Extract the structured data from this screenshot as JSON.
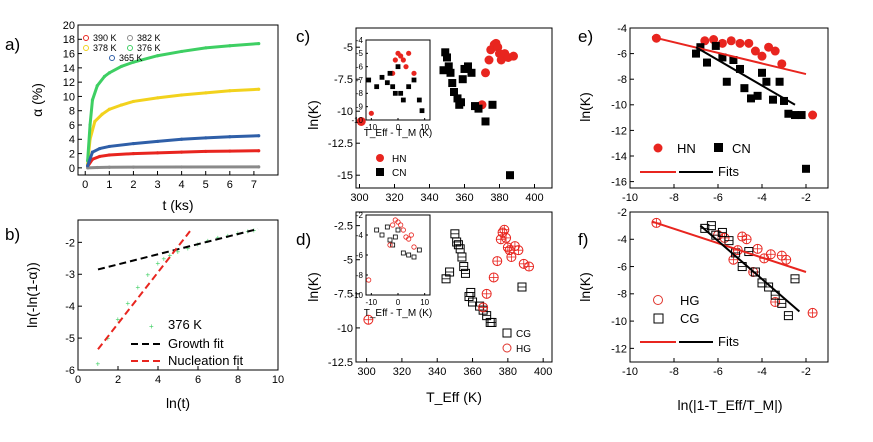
{
  "colors": {
    "red": "#e8251f",
    "green": "#3ecf63",
    "yellow": "#f2d21d",
    "blue": "#2f5fa8",
    "gray": "#8a8a8a",
    "black": "#000000",
    "hollowRed": "#e0342c"
  },
  "panels": {
    "a": {
      "label": "a)",
      "xlabel": "t (ks)",
      "ylabel": "α (%)",
      "legend": [
        "390 K",
        "382 K",
        "378 K",
        "376 K",
        "365 K"
      ]
    },
    "b": {
      "label": "b)",
      "xlabel": "ln(t)",
      "ylabel": "ln(-ln(1-α))",
      "legend": [
        "376 K",
        "Growth fit",
        "Nucleation fit"
      ]
    },
    "c": {
      "label": "c)",
      "ylabel": "ln(K)",
      "legend": [
        "HN",
        "CN"
      ],
      "inset_xlabel": "T_Eff - T_M (K)"
    },
    "d": {
      "label": "d)",
      "xlabel": "T_Eff (K)",
      "ylabel": "ln(K)",
      "legend": [
        "CG",
        "HG"
      ],
      "inset_xlabel": "T_Eff - T_M (K)"
    },
    "e": {
      "label": "e)",
      "ylabel": "ln(K)",
      "legend": [
        "HN",
        "CN",
        "Fits"
      ]
    },
    "f": {
      "label": "f)",
      "xlabel": "ln(|1-T_Eff/T_M|)",
      "ylabel": "ln(K)",
      "legend": [
        "HG",
        "CG",
        "Fits"
      ]
    }
  },
  "chart_data": [
    {
      "id": "a",
      "type": "line",
      "title": "",
      "xlabel": "t (ks)",
      "ylabel": "α (%)",
      "xlim": [
        -0.3,
        8
      ],
      "ylim": [
        -1,
        20
      ],
      "xticks": [
        0,
        1,
        2,
        3,
        4,
        5,
        6,
        7
      ],
      "yticks": [
        0,
        2,
        4,
        6,
        8,
        10,
        12,
        14,
        16,
        18,
        20
      ],
      "series": [
        {
          "name": "390 K",
          "color": "red",
          "x": [
            0.1,
            0.3,
            0.6,
            1,
            2,
            3,
            4,
            5,
            6,
            7.2
          ],
          "y": [
            0.2,
            1.2,
            1.6,
            1.8,
            2.0,
            2.1,
            2.2,
            2.3,
            2.35,
            2.4
          ]
        },
        {
          "name": "382 K",
          "color": "gray",
          "x": [
            0.1,
            0.5,
            1,
            2,
            4,
            7.2
          ],
          "y": [
            0.0,
            0.05,
            0.08,
            0.1,
            0.12,
            0.14
          ]
        },
        {
          "name": "378 K",
          "color": "yellow",
          "x": [
            0.1,
            0.2,
            0.4,
            0.7,
            1,
            1.5,
            2,
            3,
            4,
            5,
            6,
            7.2
          ],
          "y": [
            0.5,
            4,
            6.5,
            7.5,
            8.2,
            8.8,
            9.3,
            9.8,
            10.2,
            10.5,
            10.8,
            11.0
          ]
        },
        {
          "name": "376 K",
          "color": "green",
          "x": [
            0.1,
            0.2,
            0.3,
            0.5,
            0.8,
            1,
            1.5,
            2,
            3,
            4,
            5,
            6,
            7.2
          ],
          "y": [
            1,
            6,
            9.5,
            11.5,
            12.8,
            13.3,
            14.2,
            14.8,
            15.7,
            16.3,
            16.8,
            17.1,
            17.4
          ]
        },
        {
          "name": "365 K",
          "color": "blue",
          "x": [
            0.1,
            0.3,
            0.6,
            1,
            2,
            3,
            4,
            5,
            6,
            7.2
          ],
          "y": [
            0.3,
            2.2,
            2.7,
            3.0,
            3.4,
            3.7,
            4.0,
            4.2,
            4.35,
            4.5
          ]
        }
      ]
    },
    {
      "id": "b",
      "type": "line",
      "xlabel": "ln(t)",
      "ylabel": "ln(-ln(1-α))",
      "xlim": [
        0,
        10
      ],
      "ylim": [
        -6,
        -1.3
      ],
      "xticks": [
        0,
        2,
        4,
        6,
        8,
        10
      ],
      "yticks": [
        -6,
        -5,
        -4,
        -3,
        -2
      ],
      "series": [
        {
          "name": "376 K",
          "color": "green",
          "x": [
            1,
            1.5,
            2,
            2.5,
            3,
            3.5,
            4,
            4.3,
            4.6,
            5,
            5.5,
            6,
            6.5,
            7,
            7.5,
            8,
            8.5,
            8.8
          ],
          "y": [
            -5.8,
            -5.0,
            -4.4,
            -3.9,
            -3.4,
            -3.0,
            -2.65,
            -2.5,
            -2.4,
            -2.28,
            -2.18,
            -2.05,
            -1.95,
            -1.85,
            -1.78,
            -1.7,
            -1.65,
            -1.62
          ]
        },
        {
          "name": "Growth fit",
          "color": "black",
          "x": [
            1,
            9
          ],
          "y": [
            -2.85,
            -1.58
          ]
        },
        {
          "name": "Nucleation fit",
          "color": "red",
          "x": [
            1,
            5.6
          ],
          "y": [
            -5.35,
            -1.65
          ]
        }
      ]
    },
    {
      "id": "c",
      "type": "scatter",
      "ylabel": "ln(K)",
      "xlim": [
        298,
        410
      ],
      "ylim": [
        -16,
        -3.5
      ],
      "xticks": [
        300,
        320,
        340,
        360,
        380,
        400
      ],
      "yticks": [
        -15,
        -12.5,
        -10,
        -7.5,
        -5
      ],
      "series": [
        {
          "name": "HN",
          "color": "red",
          "marker": "filled-circle",
          "x": [
            301,
            370,
            372,
            374,
            375,
            377,
            378,
            379,
            380,
            381,
            383,
            385,
            388
          ],
          "y": [
            -10.8,
            -9.5,
            -7.0,
            -6.0,
            -5.2,
            -4.8,
            -4.7,
            -5.0,
            -5.5,
            -6.0,
            -5.5,
            -5.8,
            -5.7
          ]
        },
        {
          "name": "CN",
          "color": "black",
          "marker": "filled-square",
          "x": [
            348,
            349,
            350,
            351,
            352,
            353,
            354,
            356,
            357,
            358,
            359,
            360,
            362,
            364,
            366,
            368,
            372,
            376,
            386
          ],
          "y": [
            -6.8,
            -5.4,
            -5.8,
            -6.5,
            -7.0,
            -7.8,
            -8.5,
            -9.0,
            -9.5,
            -9.3,
            -7.5,
            -6.7,
            -6.5,
            -7.0,
            -9.6,
            -9.8,
            -10.8,
            -9.5,
            -15.0
          ]
        }
      ]
    },
    {
      "id": "c_inset",
      "type": "scatter",
      "xlabel": "T_Eff - T_M (K)",
      "xlim": [
        -12,
        12
      ],
      "ylim": [
        -10,
        -4
      ],
      "xticks": [
        -10,
        0,
        10
      ],
      "yticks": [
        -10,
        -9,
        -8,
        -7,
        -6,
        -5,
        -4
      ],
      "series": [
        {
          "name": "HN",
          "color": "red",
          "x": [
            -2,
            -1,
            0,
            1,
            2,
            3,
            4,
            6,
            -10
          ],
          "y": [
            -6.5,
            -5.5,
            -5.0,
            -5.2,
            -5.5,
            -6.0,
            -5.0,
            -6.5,
            -9.5
          ]
        },
        {
          "name": "CN",
          "color": "black",
          "x": [
            -11,
            -8,
            -6,
            -4,
            -3,
            -2,
            -1,
            0,
            1,
            2,
            4,
            6,
            8,
            9
          ],
          "y": [
            -7,
            -7.5,
            -6.8,
            -7.2,
            -6.5,
            -7.5,
            -8.0,
            -6.0,
            -8.0,
            -8.5,
            -7.5,
            -7.0,
            -8.5,
            -9.3
          ]
        }
      ]
    },
    {
      "id": "d",
      "type": "scatter",
      "xlabel": "T_Eff (K)",
      "ylabel": "ln(K)",
      "xlim": [
        294,
        405
      ],
      "ylim": [
        -12.5,
        -1.5
      ],
      "xticks": [
        300,
        320,
        340,
        360,
        380,
        400
      ],
      "yticks": [
        -12.5,
        -10,
        -7.5,
        -5,
        -2.5
      ],
      "series": [
        {
          "name": "CG",
          "color": "black",
          "marker": "hollow-square",
          "x": [
            345,
            347,
            350,
            351,
            352,
            353,
            354,
            355,
            356,
            358,
            359,
            360,
            364,
            366,
            368,
            370,
            371,
            388
          ],
          "y": [
            -6.4,
            -5.9,
            -3.1,
            -3.7,
            -3.9,
            -4.2,
            -4.8,
            -5.5,
            -6.0,
            -7.7,
            -7.4,
            -8.1,
            -8.4,
            -8.7,
            -9.1,
            -9.6,
            -9.6,
            -7.0
          ]
        },
        {
          "name": "HG",
          "color": "red",
          "marker": "hollow-circle",
          "x": [
            301,
            366,
            368,
            372,
            374,
            376,
            377,
            378,
            379,
            380,
            381,
            382,
            384,
            386,
            389,
            392
          ],
          "y": [
            -9.4,
            -8.5,
            -7.5,
            -6.3,
            -5.1,
            -3.5,
            -3.0,
            -2.8,
            -3.4,
            -4.1,
            -4.3,
            -4.8,
            -4.0,
            -4.3,
            -5.3,
            -5.5
          ]
        }
      ]
    },
    {
      "id": "d_inset",
      "type": "scatter",
      "xlabel": "T_Eff - T_M (K)",
      "xlim": [
        -12,
        12
      ],
      "ylim": [
        -10,
        -2
      ],
      "xticks": [
        -10,
        0,
        10
      ],
      "yticks": [
        -10,
        -8,
        -6,
        -4,
        -2
      ],
      "series": [
        {
          "name": "CG",
          "color": "black",
          "x": [
            -8,
            -6,
            -4,
            -3,
            -2,
            -1,
            0,
            2,
            4,
            6,
            8
          ],
          "y": [
            -3.5,
            -4.0,
            -3.2,
            -4.5,
            -5.0,
            -4.2,
            -3.5,
            -5.8,
            -6.0,
            -6.2,
            -5.5
          ]
        },
        {
          "name": "HG",
          "color": "red",
          "x": [
            -11,
            -3,
            -2,
            -1,
            0,
            1,
            2,
            3,
            4,
            5,
            6
          ],
          "y": [
            -8.5,
            -5.0,
            -3.0,
            -2.5,
            -2.7,
            -3.0,
            -3.5,
            -4.2,
            -4.4,
            -4.0,
            -5.2
          ]
        }
      ]
    },
    {
      "id": "e",
      "type": "scatter",
      "ylabel": "ln(K)",
      "xlim": [
        -10,
        -1
      ],
      "ylim": [
        -16.5,
        -4
      ],
      "xticks": [
        -10,
        -8,
        -6,
        -4,
        -2
      ],
      "yticks": [
        -16,
        -14,
        -12,
        -10,
        -8,
        -6,
        -4
      ],
      "series": [
        {
          "name": "HN",
          "color": "red",
          "marker": "filled-circle",
          "x": [
            -8.8,
            -6.6,
            -6.2,
            -5.8,
            -5.4,
            -5.0,
            -4.6,
            -4.3,
            -4.0,
            -3.7,
            -3.4,
            -3.1,
            -1.7
          ],
          "y": [
            -4.8,
            -5.0,
            -4.9,
            -5.2,
            -5.0,
            -5.2,
            -5.2,
            -5.8,
            -6.2,
            -5.5,
            -5.8,
            -6.8,
            -10.8
          ]
        },
        {
          "name": "CN",
          "color": "black",
          "marker": "filled-square",
          "x": [
            -7.0,
            -6.8,
            -6.5,
            -6.1,
            -5.8,
            -5.6,
            -5.3,
            -5.0,
            -4.8,
            -4.5,
            -4.2,
            -4.0,
            -3.8,
            -3.5,
            -3.2,
            -3.0,
            -2.8,
            -2.5,
            -2.2,
            -2.0
          ],
          "y": [
            -6.0,
            -5.5,
            -6.7,
            -5.4,
            -6.3,
            -8.2,
            -6.5,
            -7.2,
            -8.7,
            -9.5,
            -9.3,
            -7.5,
            -8.2,
            -9.6,
            -8.2,
            -9.7,
            -10.7,
            -10.8,
            -10.8,
            -15.0
          ]
        },
        {
          "name": "Fits",
          "color": "red",
          "marker": "line",
          "x": [
            -9,
            -2
          ],
          "y": [
            -4.7,
            -7.6
          ]
        },
        {
          "name": "Fits",
          "color": "black",
          "marker": "line",
          "x": [
            -7,
            -2.5
          ],
          "y": [
            -5.5,
            -10.0
          ]
        }
      ]
    },
    {
      "id": "f",
      "type": "scatter",
      "xlabel": "ln(|1-T_Eff/T_M|)",
      "ylabel": "ln(K)",
      "xlim": [
        -10,
        -1
      ],
      "ylim": [
        -13,
        -2
      ],
      "xticks": [
        -10,
        -8,
        -6,
        -4,
        -2
      ],
      "yticks": [
        -12,
        -10,
        -8,
        -6,
        -4,
        -2
      ],
      "series": [
        {
          "name": "HG",
          "color": "red",
          "marker": "hollow-circle",
          "x": [
            -8.8,
            -6.0,
            -5.7,
            -5.3,
            -5.1,
            -4.9,
            -4.7,
            -4.4,
            -4.2,
            -3.9,
            -3.6,
            -3.4,
            -3.1,
            -2.9,
            -1.7
          ],
          "y": [
            -2.8,
            -3.7,
            -3.9,
            -5.5,
            -4.8,
            -3.8,
            -4.0,
            -6.4,
            -4.7,
            -5.4,
            -5.1,
            -8.6,
            -5.2,
            -5.5,
            -9.4
          ]
        },
        {
          "name": "CG",
          "color": "black",
          "marker": "hollow-square",
          "x": [
            -6.6,
            -6.3,
            -6.1,
            -5.8,
            -5.5,
            -5.2,
            -4.9,
            -4.6,
            -4.3,
            -4.0,
            -3.7,
            -3.4,
            -3.1,
            -2.8,
            -2.5
          ],
          "y": [
            -3.2,
            -3.0,
            -3.7,
            -3.5,
            -4.1,
            -5.0,
            -6.0,
            -4.9,
            -6.4,
            -7.2,
            -7.5,
            -8.1,
            -8.7,
            -9.6,
            -6.9
          ]
        },
        {
          "name": "Fits",
          "color": "red",
          "marker": "line",
          "x": [
            -9,
            -2
          ],
          "y": [
            -2.7,
            -6.4
          ]
        },
        {
          "name": "Fits",
          "color": "black",
          "marker": "line",
          "x": [
            -6.8,
            -2.3
          ],
          "y": [
            -3.0,
            -9.3
          ]
        }
      ]
    }
  ]
}
